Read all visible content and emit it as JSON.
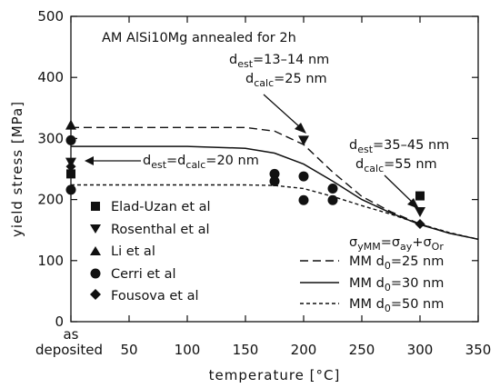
{
  "chart_data": {
    "type": "scatter",
    "title": "AM   AlSi10Mg annealed for 2h",
    "xlabel": "temperature [°C]",
    "ylabel": "yield stress [MPa]",
    "xlim": [
      0,
      350
    ],
    "ylim": [
      0,
      500
    ],
    "x_ticks": [
      "as",
      "deposited",
      "50",
      "100",
      "150",
      "200",
      "250",
      "300",
      "350"
    ],
    "y_ticks": [
      "0",
      "100",
      "200",
      "300",
      "400",
      "500"
    ],
    "grid": false,
    "legend_position": "right",
    "series": [
      {
        "name": "Elad-Uzan et al",
        "marker": "square",
        "points": [
          [
            0,
            242
          ],
          [
            300,
            206
          ]
        ]
      },
      {
        "name": "Rosenthal et al",
        "marker": "triangle-down",
        "points": [
          [
            0,
            261
          ],
          [
            200,
            297
          ],
          [
            300,
            180
          ]
        ]
      },
      {
        "name": "Li et al",
        "marker": "triangle-up",
        "points": [
          [
            0,
            322
          ]
        ]
      },
      {
        "name": "Cerri et al",
        "marker": "circle",
        "points": [
          [
            0,
            297
          ],
          [
            0,
            216
          ],
          [
            175,
            242
          ],
          [
            175,
            230
          ],
          [
            200,
            238
          ],
          [
            200,
            199
          ],
          [
            225,
            218
          ],
          [
            225,
            199
          ]
        ]
      },
      {
        "name": "Fousova et al",
        "marker": "diamond",
        "points": [
          [
            0,
            254
          ],
          [
            300,
            160
          ]
        ]
      }
    ],
    "model_lines": [
      {
        "name": "MM d0=25 nm",
        "style": "long-dash",
        "x": [
          0,
          50,
          100,
          150,
          175,
          200,
          225,
          250,
          275,
          300,
          325,
          350
        ],
        "y": [
          318,
          318,
          318,
          318,
          312,
          290,
          245,
          205,
          180,
          160,
          145,
          135
        ]
      },
      {
        "name": "MM d0=30 nm",
        "style": "solid",
        "x": [
          0,
          50,
          100,
          150,
          175,
          200,
          225,
          250,
          275,
          300,
          325,
          350
        ],
        "y": [
          287,
          287,
          287,
          284,
          276,
          258,
          230,
          200,
          178,
          159,
          145,
          135
        ]
      },
      {
        "name": "MM d0=50 nm",
        "style": "short-dash",
        "x": [
          0,
          50,
          100,
          150,
          175,
          200,
          225,
          250,
          275,
          300,
          325,
          350
        ],
        "y": [
          224,
          224,
          224,
          224,
          223,
          218,
          205,
          190,
          176,
          160,
          146,
          135
        ]
      }
    ],
    "legend_header": "σyMM=σay+σOr",
    "legend_header_base": [
      "σ",
      "=σ",
      "+σ"
    ],
    "legend_header_subs": [
      "yMM",
      "ay",
      "Or"
    ],
    "legend_lines": [
      {
        "base": "MM d",
        "sub": "0",
        "rest": "=25 nm"
      },
      {
        "base": "MM d",
        "sub": "0",
        "rest": "=30 nm"
      },
      {
        "base": "MM d",
        "sub": "0",
        "rest": "=50 nm"
      }
    ],
    "annotations": [
      {
        "base": "d",
        "sub": "est",
        "rest": "=d",
        "sub2": "calc",
        "rest2": "=20 nm"
      },
      {
        "base": "d",
        "sub": "est",
        "rest": "=13–14  nm"
      },
      {
        "base": "d",
        "sub": "calc",
        "rest": "=25  nm"
      },
      {
        "base": "d",
        "sub": "est",
        "rest": "=35–45 nm"
      },
      {
        "base": "d",
        "sub": "calc",
        "rest": "=55 nm"
      }
    ]
  }
}
